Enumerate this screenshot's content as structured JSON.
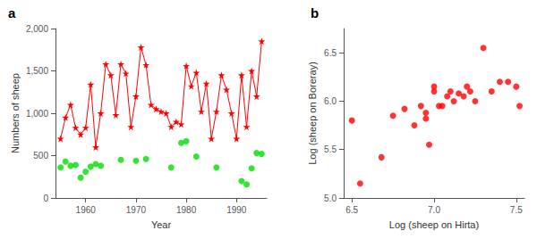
{
  "chart_data": [
    {
      "type": "line",
      "title": "a",
      "xlabel": "Year",
      "ylabel": "Numbers of sheep",
      "series": [
        {
          "type": "line",
          "color": "#ff0000",
          "marker": "star",
          "line_style": "solid",
          "x": [
            1955,
            1956,
            1957,
            1958,
            1959,
            1960,
            1961,
            1962,
            1963,
            1964,
            1965,
            1966,
            1967,
            1968,
            1969,
            1970,
            1971,
            1972,
            1973,
            1974,
            1975,
            1976,
            1977,
            1978,
            1979,
            1980,
            1981,
            1982,
            1983,
            1984,
            1985,
            1986,
            1987,
            1988,
            1989,
            1990,
            1991,
            1992,
            1993,
            1994,
            1995
          ],
          "values": [
            700,
            950,
            1100,
            830,
            750,
            830,
            1340,
            600,
            1000,
            1580,
            1450,
            980,
            1580,
            1470,
            840,
            1200,
            1780,
            1570,
            1100,
            1050,
            1020,
            1000,
            840,
            900,
            870,
            1560,
            1320,
            1480,
            1020,
            1350,
            700,
            1020,
            1450,
            1280,
            1000,
            700,
            1450,
            840,
            1500,
            1200,
            1850
          ]
        },
        {
          "type": "scatter",
          "color": "#00dd00",
          "marker": "circle",
          "x": [
            1955,
            1956,
            1957,
            1958,
            1959,
            1960,
            1961,
            1962,
            1963,
            1967,
            1970,
            1972,
            1977,
            1979,
            1980,
            1982,
            1986,
            1991,
            1992,
            1993,
            1994,
            1995
          ],
          "values": [
            360,
            430,
            380,
            390,
            240,
            310,
            370,
            400,
            380,
            450,
            440,
            460,
            360,
            650,
            670,
            490,
            360,
            200,
            160,
            350,
            530,
            520
          ]
        }
      ],
      "xlim": [
        1954,
        1996
      ],
      "xticks": [
        1960,
        1970,
        1980,
        1990
      ],
      "ylim": [
        0,
        2000
      ],
      "yticks": [
        0,
        500,
        {
          "value": 1000,
          "label": "1,000"
        },
        {
          "value": 1500,
          "label": "1,500"
        },
        {
          "value": 2000,
          "label": "2,000"
        }
      ],
      "grid": false
    },
    {
      "type": "scatter",
      "title": "b",
      "xlabel": "Log (sheep on Hirta)",
      "ylabel": "Log (sheep on Boreray)",
      "color": "#ff0000",
      "marker": "circle",
      "x": [
        6.5,
        6.55,
        6.68,
        6.75,
        6.82,
        6.88,
        6.92,
        6.95,
        6.95,
        6.97,
        7.0,
        7.0,
        7.03,
        7.05,
        7.08,
        7.1,
        7.12,
        7.15,
        7.18,
        7.2,
        7.22,
        7.25,
        7.3,
        7.35,
        7.4,
        7.45,
        7.5,
        7.52
      ],
      "values": [
        5.8,
        5.15,
        5.42,
        5.85,
        5.92,
        5.75,
        5.95,
        5.82,
        5.88,
        5.55,
        6.1,
        6.15,
        5.95,
        5.95,
        6.05,
        6.1,
        6.0,
        6.08,
        6.05,
        6.15,
        6.1,
        6.0,
        6.55,
        6.1,
        6.2,
        6.2,
        6.15,
        5.95
      ],
      "xlim": [
        6.45,
        7.55
      ],
      "xticks": [
        6.5,
        {
          "value": 7.0,
          "label": "7.0"
        },
        7.5
      ],
      "ylim": [
        5.0,
        6.75
      ],
      "yticks": [
        {
          "value": 5.0,
          "label": "5.0"
        },
        5.5,
        {
          "value": 6.0,
          "label": "6.0"
        },
        6.5
      ],
      "grid": false
    }
  ]
}
